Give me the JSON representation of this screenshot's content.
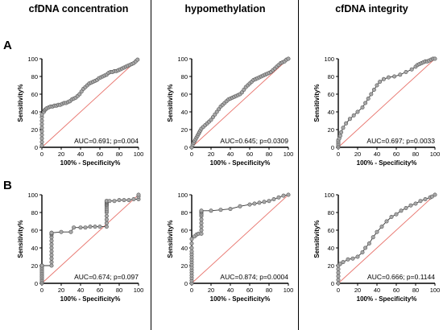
{
  "columns": [
    "cfDNA concentration",
    "hypomethylation",
    "cfDNA integrity"
  ],
  "rows": [
    "A",
    "B"
  ],
  "chart_data": [
    {
      "type": "line",
      "row": "A",
      "column": "cfDNA concentration",
      "xlabel": "100% - Specificity%",
      "ylabel": "Sensitivity%",
      "xlim": [
        0,
        100
      ],
      "ylim": [
        0,
        100
      ],
      "xticks": [
        0,
        20,
        40,
        60,
        80,
        100
      ],
      "yticks": [
        0,
        20,
        40,
        60,
        80,
        100
      ],
      "annotation": "AUC=0.691; p=0.004",
      "reference_line": [
        [
          0,
          0
        ],
        [
          100,
          100
        ]
      ],
      "series": [
        {
          "x": [
            0,
            0,
            0,
            0,
            0,
            0,
            0,
            0,
            0,
            0,
            2,
            3,
            4,
            5,
            7,
            9,
            11,
            13,
            15,
            17,
            19,
            21,
            23,
            25,
            27,
            29,
            31,
            33,
            35,
            37,
            39,
            41,
            43,
            45,
            47,
            49,
            51,
            53,
            55,
            57,
            59,
            61,
            63,
            65,
            67,
            69,
            71,
            73,
            75,
            77,
            79,
            81,
            83,
            85,
            87,
            89,
            91,
            93,
            95,
            97,
            99
          ],
          "y": [
            2,
            6,
            10,
            14,
            18,
            22,
            26,
            30,
            34,
            37,
            40,
            42,
            43,
            44,
            45,
            46,
            46,
            47,
            47,
            48,
            48,
            49,
            50,
            50,
            51,
            52,
            54,
            55,
            56,
            58,
            60,
            63,
            66,
            68,
            70,
            72,
            73,
            74,
            75,
            76,
            78,
            79,
            80,
            81,
            82,
            84,
            85,
            85,
            86,
            86,
            87,
            88,
            89,
            90,
            91,
            92,
            93,
            94,
            95,
            97,
            99
          ]
        }
      ]
    },
    {
      "type": "line",
      "row": "A",
      "column": "hypomethylation",
      "xlabel": "100% - Specificity%",
      "ylabel": "Sensitivity%",
      "xlim": [
        0,
        100
      ],
      "ylim": [
        0,
        100
      ],
      "xticks": [
        0,
        20,
        40,
        60,
        80,
        100
      ],
      "yticks": [
        0,
        20,
        40,
        60,
        80,
        100
      ],
      "annotation": "AUC=0.645; p=0.0309",
      "reference_line": [
        [
          0,
          0
        ],
        [
          100,
          100
        ]
      ],
      "series": [
        {
          "x": [
            0,
            1,
            2,
            3,
            4,
            5,
            6,
            7,
            8,
            9,
            10,
            12,
            14,
            16,
            18,
            20,
            22,
            24,
            26,
            28,
            30,
            32,
            34,
            36,
            38,
            40,
            42,
            44,
            46,
            48,
            50,
            52,
            54,
            56,
            58,
            60,
            62,
            64,
            66,
            68,
            70,
            72,
            74,
            76,
            78,
            80,
            82,
            84,
            86,
            88,
            90,
            92,
            94,
            96,
            98,
            100
          ],
          "y": [
            0,
            3,
            5,
            7,
            9,
            11,
            13,
            15,
            17,
            19,
            21,
            23,
            25,
            27,
            29,
            31,
            34,
            37,
            40,
            43,
            46,
            48,
            50,
            52,
            54,
            55,
            56,
            57,
            58,
            59,
            60,
            62,
            65,
            68,
            70,
            72,
            74,
            76,
            77,
            78,
            79,
            80,
            81,
            82,
            83,
            84,
            85,
            87,
            89,
            91,
            93,
            95,
            96,
            97,
            99,
            100
          ]
        }
      ]
    },
    {
      "type": "line",
      "row": "A",
      "column": "cfDNA integrity",
      "xlabel": "100% - Specificity%",
      "ylabel": "Sensitivity%",
      "xlim": [
        0,
        100
      ],
      "ylim": [
        0,
        100
      ],
      "xticks": [
        0,
        20,
        40,
        60,
        80,
        100
      ],
      "yticks": [
        0,
        20,
        40,
        60,
        80,
        100
      ],
      "annotation": "AUC=0.697; p=0.0033",
      "reference_line": [
        [
          0,
          0
        ],
        [
          100,
          100
        ]
      ],
      "series": [
        {
          "x": [
            0,
            0,
            0,
            0,
            0,
            1,
            2,
            3,
            5,
            8,
            12,
            16,
            20,
            25,
            28,
            31,
            34,
            37,
            40,
            43,
            47,
            52,
            58,
            64,
            70,
            76,
            80,
            82,
            84,
            86,
            88,
            90,
            92,
            94,
            96,
            98,
            100
          ],
          "y": [
            0,
            2,
            4,
            6,
            8,
            10,
            13,
            17,
            22,
            27,
            32,
            36,
            40,
            45,
            50,
            55,
            60,
            65,
            70,
            74,
            77,
            79,
            80,
            82,
            85,
            88,
            91,
            93,
            94,
            95,
            96,
            97,
            97,
            98,
            99,
            100,
            100
          ]
        }
      ]
    },
    {
      "type": "line",
      "row": "B",
      "column": "cfDNA concentration",
      "xlabel": "100% - Specificity%",
      "ylabel": "Sensitivity%",
      "xlim": [
        0,
        100
      ],
      "ylim": [
        0,
        100
      ],
      "xticks": [
        0,
        20,
        40,
        60,
        80,
        100
      ],
      "yticks": [
        0,
        20,
        40,
        60,
        80,
        100
      ],
      "annotation": "AUC=0.674; p=0.097",
      "reference_line": [
        [
          0,
          0
        ],
        [
          100,
          100
        ]
      ],
      "series": [
        {
          "x": [
            0,
            0,
            0,
            0,
            0,
            0,
            0,
            0,
            0,
            0,
            0,
            0,
            0,
            0,
            10,
            10,
            10,
            10,
            10,
            10,
            10,
            10,
            10,
            10,
            10,
            10,
            10,
            20,
            30,
            33,
            40,
            45,
            50,
            55,
            60,
            67,
            67,
            67,
            67,
            67,
            67,
            67,
            67,
            67,
            67,
            67,
            67,
            67,
            67,
            67,
            67,
            70,
            75,
            80,
            85,
            90,
            95,
            100,
            100,
            100
          ],
          "y": [
            0,
            2,
            4,
            6,
            8,
            10,
            12,
            14,
            16,
            18,
            20,
            20,
            20,
            20,
            20,
            24,
            28,
            32,
            36,
            40,
            44,
            48,
            52,
            55,
            56,
            57,
            57,
            58,
            58,
            63,
            63,
            63,
            64,
            64,
            64,
            64,
            68,
            72,
            76,
            80,
            82,
            84,
            86,
            88,
            89,
            90,
            91,
            92,
            92,
            93,
            93,
            93,
            93,
            94,
            94,
            94,
            95,
            95,
            98,
            100
          ]
        }
      ]
    },
    {
      "type": "line",
      "row": "B",
      "column": "hypomethylation",
      "xlabel": "100% - Specificity%",
      "ylabel": "Sensitivity%",
      "xlim": [
        0,
        100
      ],
      "ylim": [
        0,
        100
      ],
      "xticks": [
        0,
        20,
        40,
        60,
        80,
        100
      ],
      "yticks": [
        0,
        20,
        40,
        60,
        80,
        100
      ],
      "annotation": "AUC=0.874; p=0.0004",
      "reference_line": [
        [
          0,
          0
        ],
        [
          100,
          100
        ]
      ],
      "series": [
        {
          "x": [
            0,
            0,
            0,
            0,
            0,
            0,
            0,
            0,
            0,
            0,
            0,
            0,
            0,
            0,
            0,
            0,
            3,
            5,
            7,
            10,
            10,
            10,
            10,
            10,
            10,
            10,
            10,
            10,
            10,
            20,
            30,
            40,
            50,
            60,
            65,
            70,
            75,
            80,
            85,
            90,
            95,
            100
          ],
          "y": [
            0,
            3,
            6,
            9,
            12,
            15,
            18,
            21,
            24,
            27,
            30,
            33,
            36,
            40,
            45,
            50,
            53,
            55,
            56,
            56,
            60,
            64,
            68,
            72,
            76,
            78,
            80,
            81,
            82,
            82,
            83,
            84,
            87,
            89,
            90,
            91,
            92,
            93,
            95,
            97,
            99,
            100
          ]
        }
      ]
    },
    {
      "type": "line",
      "row": "B",
      "column": "cfDNA integrity",
      "xlabel": "100% - Specificity%",
      "ylabel": "Sensitivity%",
      "xlim": [
        0,
        100
      ],
      "ylim": [
        0,
        100
      ],
      "xticks": [
        0,
        20,
        40,
        60,
        80,
        100
      ],
      "yticks": [
        0,
        20,
        40,
        60,
        80,
        100
      ],
      "annotation": "AUC=0.666; p=0.1144",
      "reference_line": [
        [
          0,
          0
        ],
        [
          100,
          100
        ]
      ],
      "series": [
        {
          "x": [
            0,
            0,
            0,
            0,
            0,
            0,
            2,
            5,
            10,
            15,
            20,
            25,
            28,
            32,
            36,
            40,
            45,
            50,
            55,
            60,
            65,
            70,
            75,
            80,
            85,
            90,
            95,
            97,
            100
          ],
          "y": [
            0,
            4,
            8,
            12,
            16,
            20,
            22,
            24,
            27,
            28,
            30,
            35,
            40,
            45,
            52,
            58,
            64,
            70,
            75,
            78,
            82,
            85,
            88,
            90,
            93,
            95,
            97,
            98,
            100
          ]
        }
      ]
    }
  ]
}
